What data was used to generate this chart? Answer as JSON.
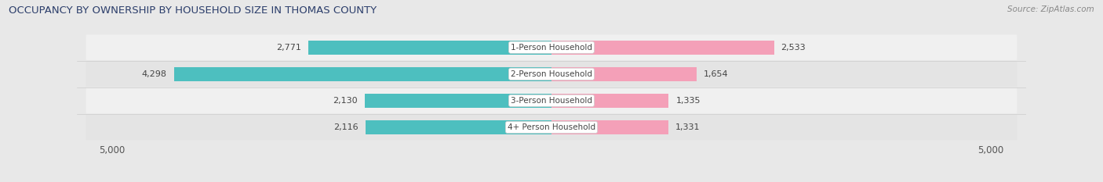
{
  "title": "OCCUPANCY BY OWNERSHIP BY HOUSEHOLD SIZE IN THOMAS COUNTY",
  "source": "Source: ZipAtlas.com",
  "categories": [
    "1-Person Household",
    "2-Person Household",
    "3-Person Household",
    "4+ Person Household"
  ],
  "owner_values": [
    2771,
    4298,
    2130,
    2116
  ],
  "renter_values": [
    2533,
    1654,
    1335,
    1331
  ],
  "max_scale": 5000,
  "owner_color": "#4dbfbf",
  "renter_color": "#f4a0b8",
  "bg_color": "#e8e8e8",
  "row_light_color": "#f5f5f5",
  "row_dark_color": "#e0e0e0",
  "title_fontsize": 9.5,
  "bar_label_fontsize": 8,
  "category_fontsize": 7.5,
  "axis_label_fontsize": 8.5,
  "legend_fontsize": 8.5,
  "bar_height": 0.52
}
